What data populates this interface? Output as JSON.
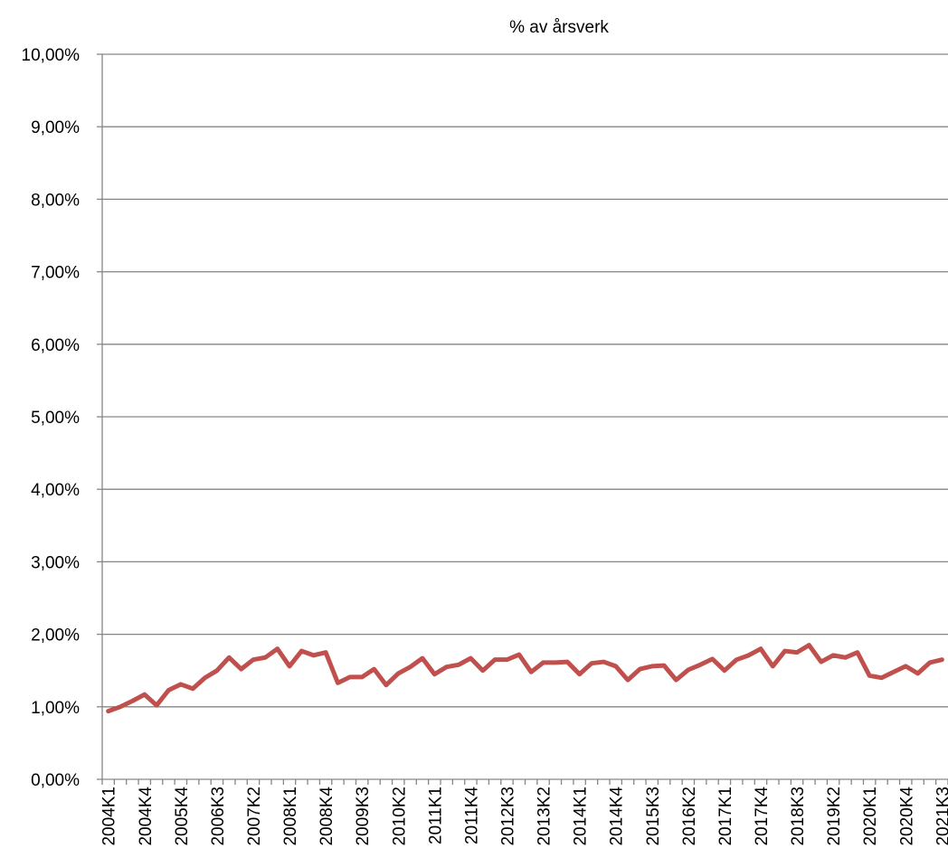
{
  "chart_data": {
    "type": "line",
    "title": "% av årsverk",
    "categories": [
      "2004K1",
      null,
      null,
      "2004K4",
      null,
      null,
      "2005K4",
      null,
      null,
      "2006K3",
      null,
      null,
      "2007K2",
      null,
      null,
      "2008K1",
      null,
      null,
      "2008K4",
      null,
      null,
      "2009K3",
      null,
      null,
      "2010K2",
      null,
      null,
      "2011K1",
      null,
      null,
      "2011K4",
      null,
      null,
      "2012K3",
      null,
      null,
      "2013K2",
      null,
      null,
      "2014K1",
      null,
      null,
      "2014K4",
      null,
      null,
      "2015K3",
      null,
      null,
      "2016K2",
      null,
      null,
      "2017K1",
      null,
      null,
      "2017K4",
      null,
      null,
      "2018K3",
      null,
      null,
      "2019K2",
      null,
      null,
      "2020K1",
      null,
      null,
      "2020K4",
      null,
      null,
      "2021K3"
    ],
    "series": [
      {
        "name": "% av årsverk",
        "color": "#c0504d",
        "values": [
          0.94,
          1.0,
          1.08,
          1.17,
          1.02,
          1.23,
          1.31,
          1.25,
          1.4,
          1.5,
          1.68,
          1.52,
          1.65,
          1.68,
          1.8,
          1.56,
          1.77,
          1.71,
          1.75,
          1.33,
          1.41,
          1.41,
          1.52,
          1.3,
          1.46,
          1.55,
          1.67,
          1.45,
          1.55,
          1.58,
          1.67,
          1.5,
          1.65,
          1.65,
          1.72,
          1.48,
          1.61,
          1.61,
          1.62,
          1.45,
          1.6,
          1.62,
          1.56,
          1.37,
          1.52,
          1.56,
          1.57,
          1.37,
          1.51,
          1.58,
          1.66,
          1.5,
          1.65,
          1.71,
          1.8,
          1.56,
          1.77,
          1.75,
          1.85,
          1.62,
          1.71,
          1.68,
          1.75,
          1.43,
          1.4,
          1.48,
          1.56,
          1.46,
          1.61,
          1.65
        ]
      }
    ],
    "ylim": [
      0,
      10
    ],
    "yticks": [
      {
        "value": 0,
        "label": "0,00%"
      },
      {
        "value": 1,
        "label": "1,00%"
      },
      {
        "value": 2,
        "label": "2,00%"
      },
      {
        "value": 3,
        "label": "3,00%"
      },
      {
        "value": 4,
        "label": "4,00%"
      },
      {
        "value": 5,
        "label": "5,00%"
      },
      {
        "value": 6,
        "label": "6,00%"
      },
      {
        "value": 7,
        "label": "7,00%"
      },
      {
        "value": 8,
        "label": "8,00%"
      },
      {
        "value": 9,
        "label": "9,00%"
      },
      {
        "value": 10,
        "label": "10,00%"
      }
    ],
    "grid": true
  }
}
